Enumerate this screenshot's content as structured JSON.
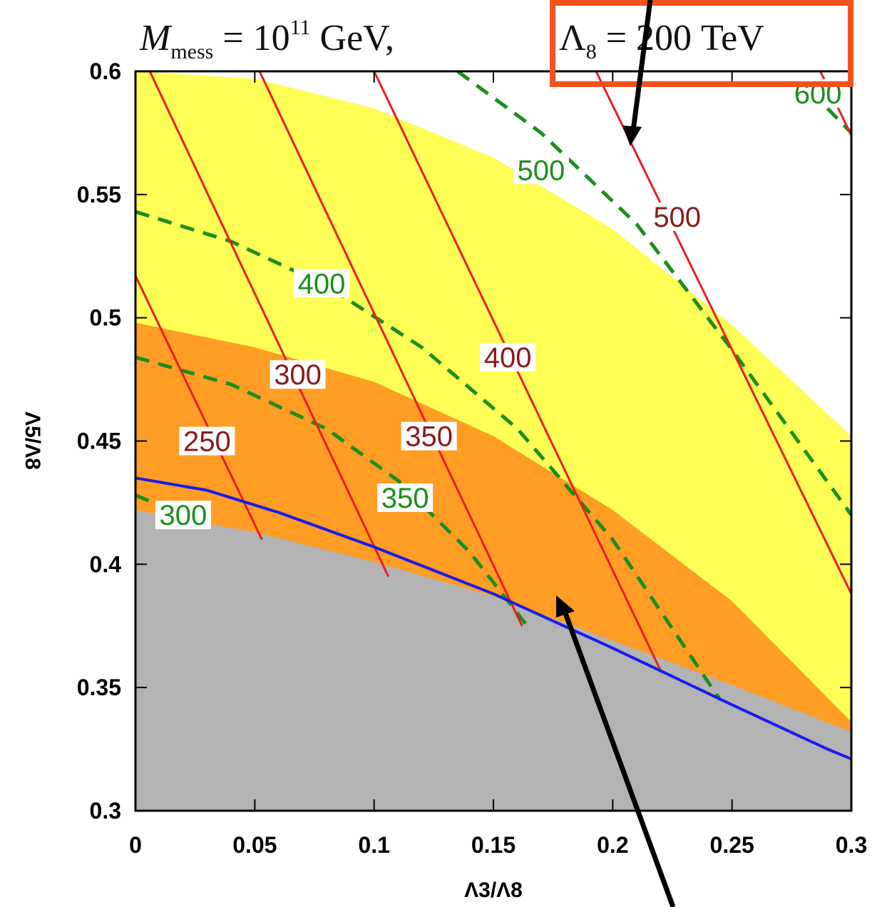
{
  "chart_data": {
    "type": "contour",
    "title": {
      "m_symbol": "M",
      "m_sub": "mess",
      "eq1": " = 10",
      "exp": "11",
      "gev": " GeV,",
      "lambda_symbol": "Λ",
      "lambda_sub": "8",
      "eq2": " = 200 TeV"
    },
    "xlabel": "Λ3/Λ8",
    "ylabel": "Λ5/Λ8",
    "xlim": [
      0,
      0.3
    ],
    "ylim": [
      0.3,
      0.6
    ],
    "x_ticks": [
      "0",
      "0.05",
      "0.1",
      "0.15",
      "0.2",
      "0.25",
      "0.3"
    ],
    "y_ticks": [
      "0.3",
      "0.35",
      "0.4",
      "0.45",
      "0.5",
      "0.55",
      "0.6"
    ],
    "colors": {
      "yellow_region": "#ffff55",
      "orange_region": "#ff9d25",
      "gray_region": "#b3b3b3",
      "red_contours": "#ee1c1c",
      "red_label_text": "#8b1a1a",
      "green_contours": "#1a8f1a",
      "blue_line": "#1a1aee",
      "highlight_box": "#f4511e",
      "arrows": "#000000"
    },
    "regions": [
      {
        "name": "gray",
        "boundary": [
          [
            0,
            0.422
          ],
          [
            0.05,
            0.413
          ],
          [
            0.1,
            0.401
          ],
          [
            0.15,
            0.387
          ],
          [
            0.2,
            0.369
          ],
          [
            0.25,
            0.351
          ],
          [
            0.3,
            0.332
          ]
        ]
      },
      {
        "name": "orange",
        "boundary": [
          [
            0,
            0.498
          ],
          [
            0.05,
            0.488
          ],
          [
            0.1,
            0.474
          ],
          [
            0.15,
            0.452
          ],
          [
            0.2,
            0.422
          ],
          [
            0.25,
            0.385
          ],
          [
            0.3,
            0.336
          ]
        ]
      },
      {
        "name": "yellow",
        "boundary": [
          [
            0,
            0.6
          ],
          [
            0.05,
            0.597
          ],
          [
            0.1,
            0.585
          ],
          [
            0.15,
            0.565
          ],
          [
            0.2,
            0.536
          ],
          [
            0.25,
            0.497
          ],
          [
            0.3,
            0.452
          ]
        ]
      }
    ],
    "blue_line": {
      "points": [
        [
          0,
          0.435
        ],
        [
          0.03,
          0.43
        ],
        [
          0.06,
          0.421
        ],
        [
          0.1,
          0.407
        ],
        [
          0.15,
          0.388
        ],
        [
          0.2,
          0.366
        ],
        [
          0.25,
          0.343
        ],
        [
          0.29,
          0.325
        ],
        [
          0.3,
          0.321
        ]
      ]
    },
    "red_contours": [
      {
        "label": "250",
        "points": [
          [
            0,
            0.517
          ],
          [
            0.053,
            0.41
          ]
        ]
      },
      {
        "label": "300",
        "points": [
          [
            0.006,
            0.6
          ],
          [
            0.106,
            0.395
          ]
        ]
      },
      {
        "label": "350",
        "points": [
          [
            0.052,
            0.6
          ],
          [
            0.162,
            0.375
          ]
        ]
      },
      {
        "label": "400",
        "points": [
          [
            0.1,
            0.6
          ],
          [
            0.22,
            0.357
          ]
        ]
      },
      {
        "label": "500",
        "points": [
          [
            0.193,
            0.6
          ],
          [
            0.3,
            0.388
          ]
        ]
      },
      {
        "label": "",
        "points": [
          [
            0.287,
            0.6
          ],
          [
            0.3,
            0.574
          ]
        ]
      }
    ],
    "red_labels": [
      {
        "text": "250",
        "x": 0.03,
        "y": 0.45
      },
      {
        "text": "300",
        "x": 0.068,
        "y": 0.477
      },
      {
        "text": "350",
        "x": 0.123,
        "y": 0.452
      },
      {
        "text": "400",
        "x": 0.156,
        "y": 0.484
      },
      {
        "text": "500",
        "x": 0.227,
        "y": 0.541
      }
    ],
    "green_contours": [
      {
        "label": "300",
        "points": [
          [
            0,
            0.428
          ],
          [
            0.02,
            0.42
          ]
        ]
      },
      {
        "label": "350",
        "points": [
          [
            0,
            0.484
          ],
          [
            0.04,
            0.473
          ],
          [
            0.08,
            0.455
          ],
          [
            0.11,
            0.434
          ],
          [
            0.14,
            0.405
          ],
          [
            0.165,
            0.374
          ]
        ]
      },
      {
        "label": "400",
        "points": [
          [
            0,
            0.543
          ],
          [
            0.04,
            0.531
          ],
          [
            0.08,
            0.513
          ],
          [
            0.12,
            0.488
          ],
          [
            0.16,
            0.455
          ],
          [
            0.2,
            0.41
          ],
          [
            0.245,
            0.345
          ]
        ]
      },
      {
        "label": "500",
        "points": [
          [
            0.135,
            0.6
          ],
          [
            0.17,
            0.575
          ],
          [
            0.21,
            0.538
          ],
          [
            0.25,
            0.487
          ],
          [
            0.3,
            0.42
          ]
        ]
      },
      {
        "label": "600",
        "points": [
          [
            0.29,
            0.585
          ],
          [
            0.3,
            0.575
          ]
        ]
      }
    ],
    "green_labels": [
      {
        "text": "300",
        "x": 0.02,
        "y": 0.42
      },
      {
        "text": "350",
        "x": 0.113,
        "y": 0.427
      },
      {
        "text": "400",
        "x": 0.078,
        "y": 0.514
      },
      {
        "text": "500",
        "x": 0.17,
        "y": 0.56
      },
      {
        "text": "600",
        "x": 0.286,
        "y": 0.591
      }
    ]
  }
}
